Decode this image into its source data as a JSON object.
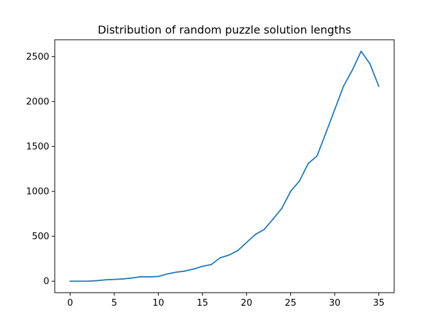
{
  "chart_data": {
    "type": "line",
    "title": "Distribution of random puzzle solution lengths",
    "xlabel": "",
    "ylabel": "",
    "xlim": [
      -1.75,
      36.75
    ],
    "ylim": [
      -128,
      2688
    ],
    "xticks": [
      0,
      5,
      10,
      15,
      20,
      25,
      30,
      35
    ],
    "yticks": [
      0,
      500,
      1000,
      1500,
      2000,
      2500
    ],
    "grid": false,
    "series": [
      {
        "color": "#1f77b4",
        "x": [
          0,
          1,
          2,
          3,
          4,
          5,
          6,
          7,
          8,
          9,
          10,
          11,
          12,
          13,
          14,
          15,
          16,
          17,
          18,
          19,
          20,
          21,
          22,
          23,
          24,
          25,
          26,
          27,
          28,
          29,
          30,
          31,
          32,
          33,
          34,
          35
        ],
        "values": [
          0,
          0,
          0,
          5,
          15,
          20,
          25,
          35,
          50,
          48,
          52,
          80,
          100,
          112,
          135,
          165,
          185,
          260,
          290,
          340,
          430,
          520,
          575,
          690,
          810,
          1000,
          1115,
          1310,
          1395,
          1650,
          1910,
          2170,
          2350,
          2560,
          2420,
          2170
        ]
      }
    ]
  }
}
